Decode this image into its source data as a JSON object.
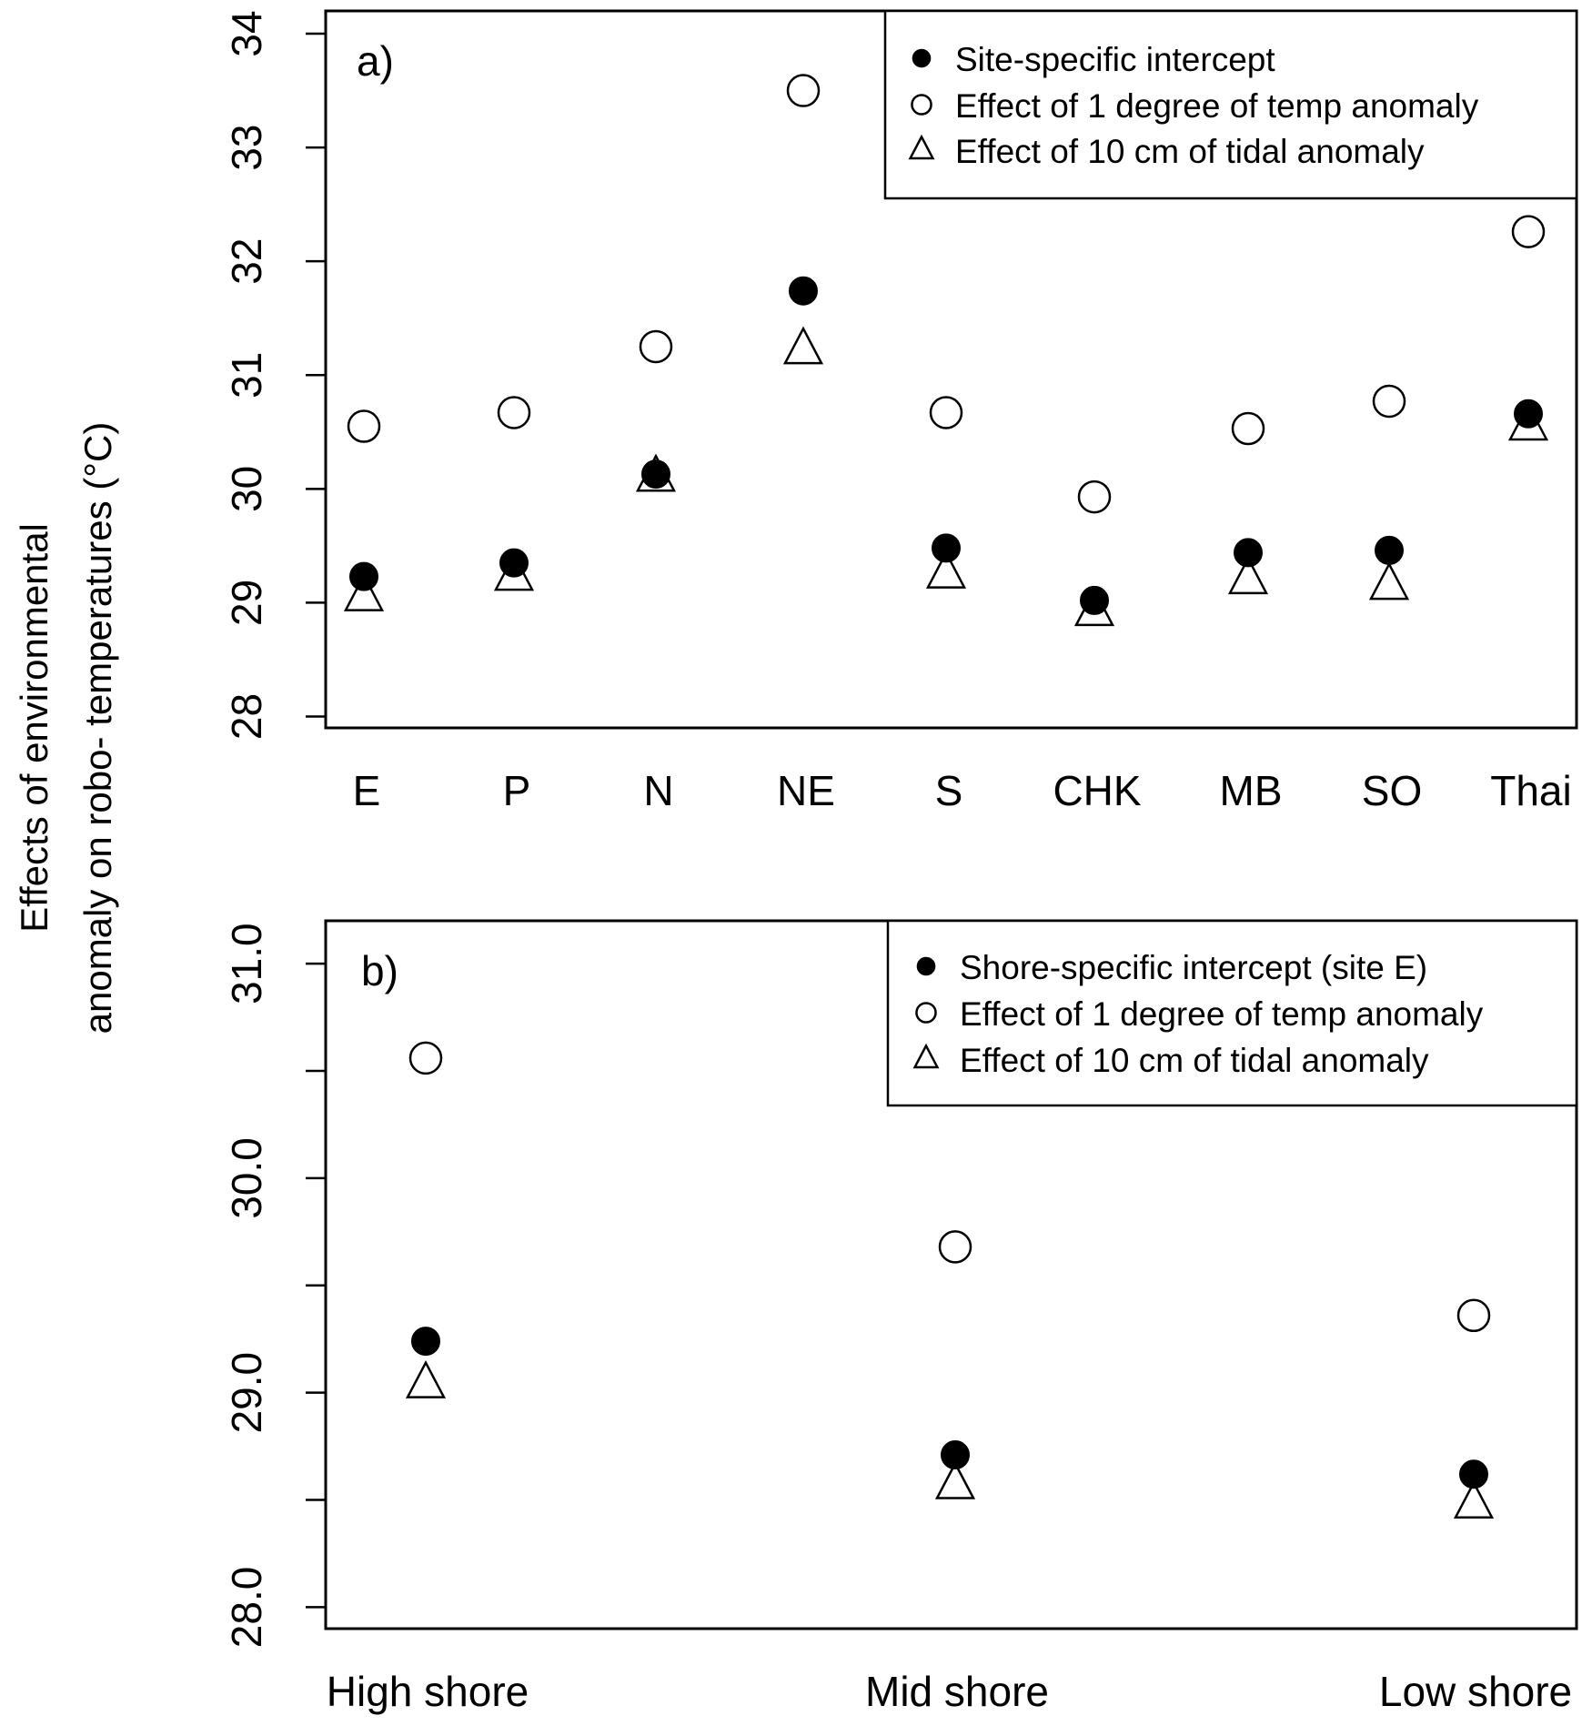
{
  "ylabel_lines": [
    "Effects of environmental",
    "anomaly on robo- temperatures (°C)"
  ],
  "chart_data": [
    {
      "type": "scatter",
      "panel_label": "a)",
      "categories": [
        "E",
        "P",
        "N",
        "NE",
        "S",
        "CHK",
        "MB",
        "SO",
        "Thai"
      ],
      "ylim": [
        27.9,
        34.2
      ],
      "yticks": [
        28,
        29,
        30,
        31,
        32,
        33,
        34
      ],
      "ytick_labels": [
        "28",
        "29",
        "30",
        "31",
        "32",
        "33",
        "34"
      ],
      "legend_position": "top-right",
      "series": [
        {
          "name": "Site-specific intercept",
          "marker": "filled-circle",
          "values": [
            29.23,
            29.35,
            30.13,
            31.74,
            29.48,
            29.02,
            29.44,
            29.46,
            30.66
          ]
        },
        {
          "name": "Effect of 1 degree of temp anomaly",
          "marker": "open-circle",
          "values": [
            30.55,
            30.67,
            31.25,
            33.5,
            30.67,
            29.93,
            30.53,
            30.77,
            32.26
          ]
        },
        {
          "name": "Effect of 10 cm of tidal anomaly",
          "marker": "open-triangle",
          "values": [
            29.05,
            29.23,
            30.1,
            31.22,
            29.25,
            28.92,
            29.2,
            29.15,
            30.55
          ]
        }
      ]
    },
    {
      "type": "scatter",
      "panel_label": "b)",
      "categories": [
        "High shore",
        "Mid shore",
        "Low shore"
      ],
      "ylim": [
        27.9,
        31.2
      ],
      "yticks": [
        28.0,
        28.5,
        29.0,
        29.5,
        30.0,
        30.5,
        31.0
      ],
      "ytick_labels": [
        "28.0",
        "",
        "29.0",
        "",
        "30.0",
        "",
        "31.0"
      ],
      "legend_position": "top-right",
      "series": [
        {
          "name": "Shore-specific intercept (site E)",
          "marker": "filled-circle",
          "values": [
            29.24,
            28.71,
            28.62
          ]
        },
        {
          "name": "Effect of 1 degree of temp anomaly",
          "marker": "open-circle",
          "values": [
            30.56,
            29.68,
            29.36
          ]
        },
        {
          "name": "Effect of 10 cm of tidal anomaly",
          "marker": "open-triangle",
          "values": [
            29.04,
            28.57,
            28.48
          ]
        }
      ]
    }
  ]
}
